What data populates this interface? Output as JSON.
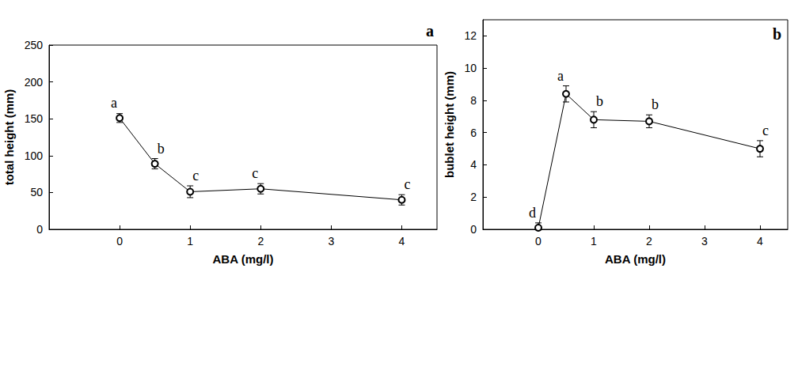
{
  "chart_data": [
    {
      "type": "line",
      "panel": "a",
      "x": [
        0,
        0.5,
        1,
        2,
        4
      ],
      "values": [
        151,
        89,
        51,
        55,
        40
      ],
      "errors": [
        6,
        7,
        8,
        7,
        7
      ],
      "annotations": [
        "a",
        "b",
        "c",
        "c",
        "c"
      ],
      "xlabel": "ABA (mg/l)",
      "ylabel": "total height (mm)",
      "xlim": [
        -1,
        4.5
      ],
      "xticks": [
        0,
        1,
        2,
        3,
        4
      ],
      "ylim": [
        0,
        250
      ],
      "yticks": [
        0,
        50,
        100,
        150,
        200,
        250
      ],
      "color": "#000000",
      "marker": "open_circle",
      "grid": false
    },
    {
      "type": "line",
      "panel": "b",
      "x": [
        0,
        0.5,
        1,
        2,
        4
      ],
      "values": [
        0.1,
        8.4,
        6.8,
        6.7,
        5.0
      ],
      "errors": [
        0.3,
        0.5,
        0.5,
        0.4,
        0.5
      ],
      "annotations": [
        "d",
        "a",
        "b",
        "b",
        "c"
      ],
      "xlabel": "ABA (mg/l)",
      "ylabel": "bublet height (mm)",
      "xlim": [
        -1,
        4.5
      ],
      "xticks": [
        0,
        1,
        2,
        3,
        4
      ],
      "ylim": [
        0,
        13
      ],
      "yticks": [
        0,
        2,
        4,
        6,
        8,
        10,
        12
      ],
      "color": "#000000",
      "marker": "open_circle",
      "grid": false
    }
  ]
}
